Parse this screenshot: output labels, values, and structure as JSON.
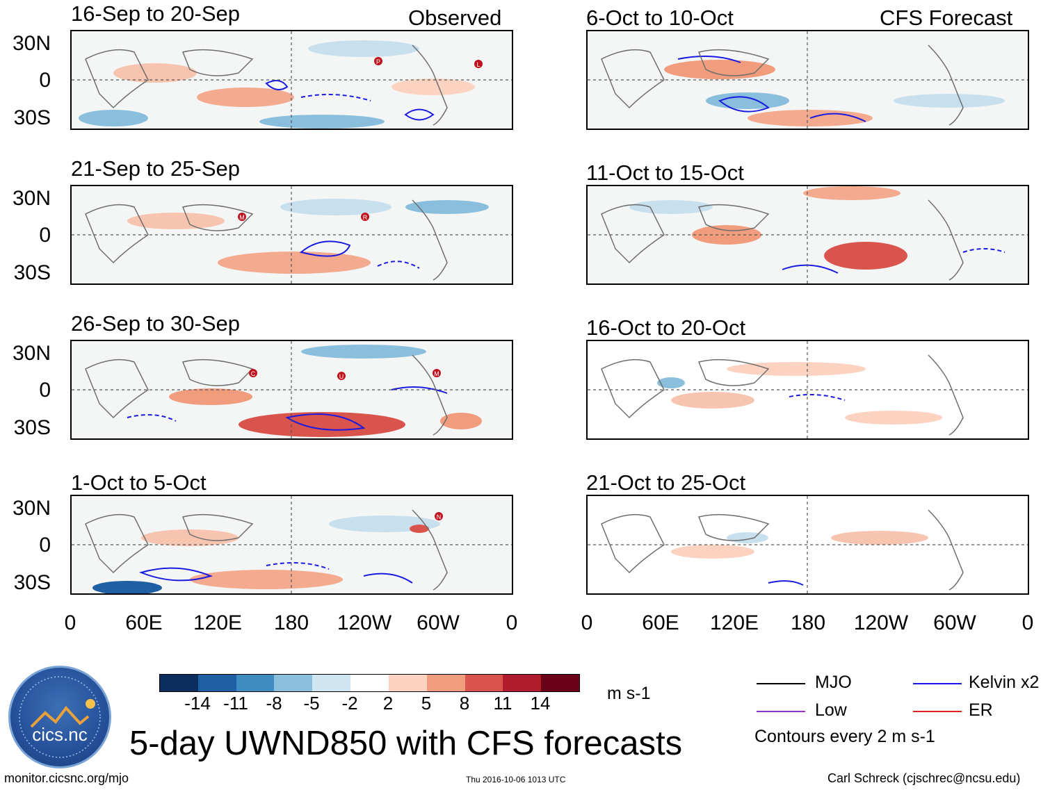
{
  "header": {
    "observed_label": "Observed",
    "forecast_label": "CFS Forecast"
  },
  "panels": {
    "observed": [
      {
        "title": "16-Sep to 20-Sep"
      },
      {
        "title": "21-Sep to 25-Sep"
      },
      {
        "title": "26-Sep to 30-Sep"
      },
      {
        "title": "1-Oct to 5-Oct"
      }
    ],
    "forecast": [
      {
        "title": "6-Oct to 10-Oct"
      },
      {
        "title": "11-Oct to 15-Oct"
      },
      {
        "title": "16-Oct to 20-Oct"
      },
      {
        "title": "21-Oct to 25-Oct"
      }
    ]
  },
  "axes": {
    "lat_labels": [
      "30N",
      "0",
      "30S"
    ],
    "lon_labels": [
      "0",
      "60E",
      "120E",
      "180",
      "120W",
      "60W",
      "0"
    ]
  },
  "storm_markers": {
    "p0": [
      "P",
      "L"
    ],
    "p1": [
      "M",
      "R"
    ],
    "p2": [
      "C",
      "U",
      "M"
    ],
    "p3": [
      "N"
    ]
  },
  "colorbar": {
    "unit": "m s-1",
    "labels": [
      "-14",
      "-11",
      "-8",
      "-5",
      "-2",
      "2",
      "5",
      "8",
      "11",
      "14"
    ],
    "colors": [
      "#0b2e5e",
      "#1f5fa3",
      "#3f8cc3",
      "#89bfdc",
      "#cfe5f0",
      "#ffffff",
      "#fbd3c0",
      "#f19c7d",
      "#d9544c",
      "#b01c2e",
      "#6b0019"
    ]
  },
  "legend": {
    "items": [
      {
        "label": "MJO",
        "color": "#000000"
      },
      {
        "label": "Kelvin x2",
        "color": "#1a1ae0"
      },
      {
        "label": "Low",
        "color": "#9b32c8"
      },
      {
        "label": "ER",
        "color": "#e0201a"
      }
    ],
    "contour_note": "Contours every 2 m s-1"
  },
  "chart_title": "5-day UWND850 with CFS forecasts",
  "footer": {
    "site": "monitor.cicsnc.org/mjo",
    "timestamp": "Thu 2016-10-06 1013 UTC",
    "credit": "Carl Schreck (cjschrec@ncsu.edu)"
  },
  "logo": {
    "text": "cics.nc",
    "ring_text": "Cooperative Institute for Climate and Satellites"
  }
}
